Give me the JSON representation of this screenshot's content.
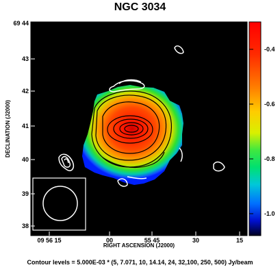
{
  "title": "NGC 3034",
  "footer": "Contour levels = 5.000E-03 * (5, 7.071, 10, 14.14, 24, 32,100, 250, 500) Jy/beam",
  "chart_data": {
    "type": "heatmap",
    "title": "NGC 3034",
    "xlabel": "RIGHT ASCENSION (J2000)",
    "ylabel": "DECLINATION (J2000)",
    "x_ticks": [
      "09 56 15",
      "00",
      "55 45",
      "30",
      "15"
    ],
    "y_ticks": [
      "69 44",
      "43",
      "42",
      "41",
      "40",
      "39",
      "38"
    ],
    "colorbar": {
      "ticks": [
        "-0.4",
        "-0.6",
        "-0.8",
        "-1.0"
      ],
      "values": [
        -0.4,
        -0.6,
        -0.8,
        -1.0
      ],
      "range": [
        -1.08,
        -0.3
      ]
    },
    "contour_levels_factor": 0.005,
    "contour_levels": [
      5,
      7.071,
      10,
      14.14,
      24,
      32,
      100,
      250,
      500
    ],
    "contour_units": "Jy/beam"
  }
}
